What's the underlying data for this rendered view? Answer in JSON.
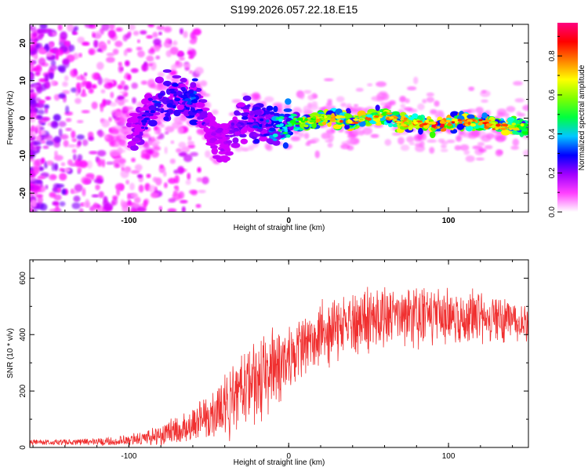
{
  "title": "S199.2026.057.22.18.E15",
  "chart_data": [
    {
      "type": "heatmap",
      "name": "spectrogram",
      "xlabel": "Height of straight line (km)",
      "ylabel": "Frequency (Hz)",
      "xlim": [
        -162,
        150
      ],
      "ylim": [
        -25,
        25
      ],
      "xticks": [
        -100,
        0,
        100
      ],
      "xtick_labels": [
        "-100",
        "0",
        "100"
      ],
      "yticks": [
        -20,
        -10,
        0,
        10,
        20
      ],
      "ytick_labels": [
        "-20",
        "-10",
        "0",
        "10",
        "20"
      ],
      "dominant_frequency_track": {
        "x": [
          -100,
          -90,
          -80,
          -70,
          -60,
          -55,
          -50,
          -45,
          -40,
          -35,
          -30,
          -25,
          -20,
          -15,
          -10,
          -5,
          0,
          10,
          20,
          30,
          40,
          50,
          60,
          70,
          80,
          90,
          100,
          110,
          120,
          130,
          140,
          150
        ],
        "y": [
          -3,
          0,
          5,
          6,
          5,
          3,
          -3,
          -5,
          -6,
          -4,
          -1,
          0,
          -2,
          -1,
          -3,
          -2,
          -1,
          -1,
          0,
          0,
          -1,
          0,
          1,
          -1,
          -1,
          -2,
          -1,
          -1,
          -1,
          -2,
          -2,
          -3
        ],
        "amplitude": [
          0.2,
          0.3,
          0.35,
          0.35,
          0.4,
          0.3,
          0.2,
          0.2,
          0.2,
          0.25,
          0.3,
          0.3,
          0.35,
          0.35,
          0.45,
          0.5,
          0.55,
          0.7,
          0.75,
          0.8,
          0.8,
          0.8,
          0.75,
          0.8,
          0.8,
          0.9,
          0.9,
          0.85,
          0.85,
          0.85,
          0.8,
          0.6
        ]
      },
      "colorbar": {
        "label": "Normalized spectral amplitude",
        "range": [
          0,
          0.97
        ],
        "ticks": [
          0.0,
          0.2,
          0.4,
          0.6,
          0.8
        ],
        "tick_labels": [
          "0.0",
          "0.2",
          "0.4",
          "0.6",
          "0.8"
        ],
        "colors": [
          "#ffffff",
          "#ff00ff",
          "#8000ff",
          "#0000ff",
          "#00ffff",
          "#00ff00",
          "#ffff00",
          "#ff8000",
          "#ff0000",
          "#ff0080"
        ]
      }
    },
    {
      "type": "line",
      "name": "snr",
      "xlabel": "Height of straight line (km)",
      "ylabel": "SNR (10 * v/v)",
      "xlim": [
        -162,
        150
      ],
      "ylim": [
        0,
        665
      ],
      "xticks": [
        -100,
        0,
        100
      ],
      "xtick_labels": [
        "-100",
        "0",
        "100"
      ],
      "yticks": [
        0,
        200,
        400,
        600
      ],
      "ytick_labels": [
        "0",
        "200",
        "400",
        "600"
      ],
      "color": "#f03030",
      "envelope": {
        "x": [
          -162,
          -140,
          -120,
          -100,
          -90,
          -80,
          -70,
          -60,
          -50,
          -45,
          -40,
          -35,
          -30,
          -25,
          -20,
          -15,
          -10,
          -5,
          0,
          5,
          10,
          15,
          20,
          30,
          40,
          50,
          60,
          70,
          80,
          90,
          100,
          110,
          120,
          130,
          140,
          150
        ],
        "mean": [
          18,
          18,
          20,
          25,
          35,
          45,
          60,
          80,
          105,
          130,
          150,
          170,
          190,
          215,
          240,
          260,
          280,
          300,
          320,
          345,
          365,
          385,
          400,
          420,
          440,
          450,
          460,
          470,
          470,
          470,
          465,
          460,
          460,
          455,
          455,
          455
        ],
        "spread": [
          12,
          12,
          15,
          20,
          30,
          40,
          55,
          70,
          90,
          110,
          125,
          140,
          150,
          150,
          150,
          150,
          150,
          150,
          140,
          130,
          120,
          120,
          120,
          120,
          120,
          120,
          115,
          110,
          110,
          105,
          100,
          95,
          90,
          90,
          85,
          85
        ]
      }
    }
  ]
}
